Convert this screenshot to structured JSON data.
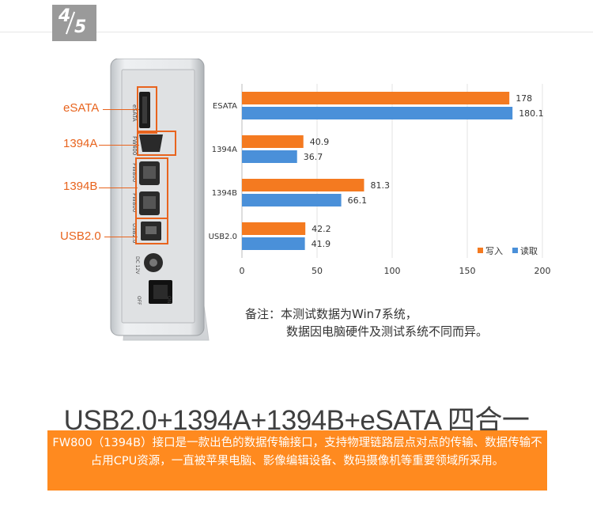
{
  "page_indicator": {
    "current": "4",
    "total": "5"
  },
  "device_ports": [
    {
      "label": "eSATA",
      "engraving": "eSATA"
    },
    {
      "label": "1394A",
      "engraving": "FW400"
    },
    {
      "label": "1394B",
      "engraving": "FW800"
    },
    {
      "label": "USB2.0",
      "engraving": "USB2.0"
    }
  ],
  "device_engravings": {
    "fw800_second": "FW800",
    "power": "DC 12V",
    "switch_off": "OFF",
    "switch_on": "ON"
  },
  "chart_data": {
    "type": "bar",
    "orientation": "horizontal",
    "categories": [
      "ESATA",
      "1394A",
      "1394B",
      "USB2.0"
    ],
    "series": [
      {
        "name": "写入",
        "values": [
          178,
          40.9,
          81.3,
          42.2
        ],
        "color": "#f47a20"
      },
      {
        "name": "读取",
        "values": [
          180.1,
          36.7,
          66.1,
          41.9
        ],
        "color": "#4a90d9"
      }
    ],
    "xticks": [
      0,
      50,
      100,
      150,
      200
    ],
    "xlim": [
      0,
      200
    ],
    "grid": true,
    "legend_position": "bottom-right"
  },
  "note": {
    "prefix": "备注：",
    "line1": "本测试数据为Win7系统，",
    "line2": "数据因电脑硬件及测试系统不同而异。"
  },
  "headline": "USB2.0+1394A+1394B+eSATA 四合一",
  "banner_text": "FW800（1394B）接口是一款出色的数据传输接口，支持物理链路层点对点的传输、数据传输不占用CPU资源，一直被苹果电脑、影像编辑设备、数码摄像机等重要领域所采用。",
  "colors": {
    "accent": "#ff8a1f",
    "label": "#e8641e",
    "write": "#f47a20",
    "read": "#4a90d9"
  }
}
